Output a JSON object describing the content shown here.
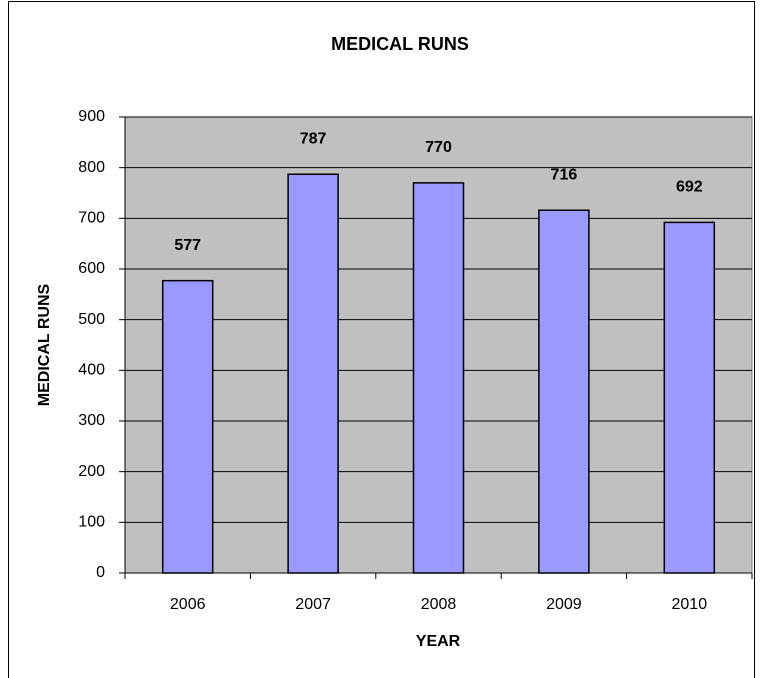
{
  "chart_data": {
    "type": "bar",
    "title": "MEDICAL RUNS",
    "x_label": "YEAR",
    "y_label": "MEDICAL RUNS",
    "categories": [
      "2006",
      "2007",
      "2008",
      "2009",
      "2010"
    ],
    "values": [
      577,
      787,
      770,
      716,
      692
    ],
    "color": "#9999ff",
    "ylim": [
      0,
      900
    ],
    "yticks": [
      0,
      100,
      200,
      300,
      400,
      500,
      600,
      700,
      800,
      900
    ],
    "grid": true
  }
}
